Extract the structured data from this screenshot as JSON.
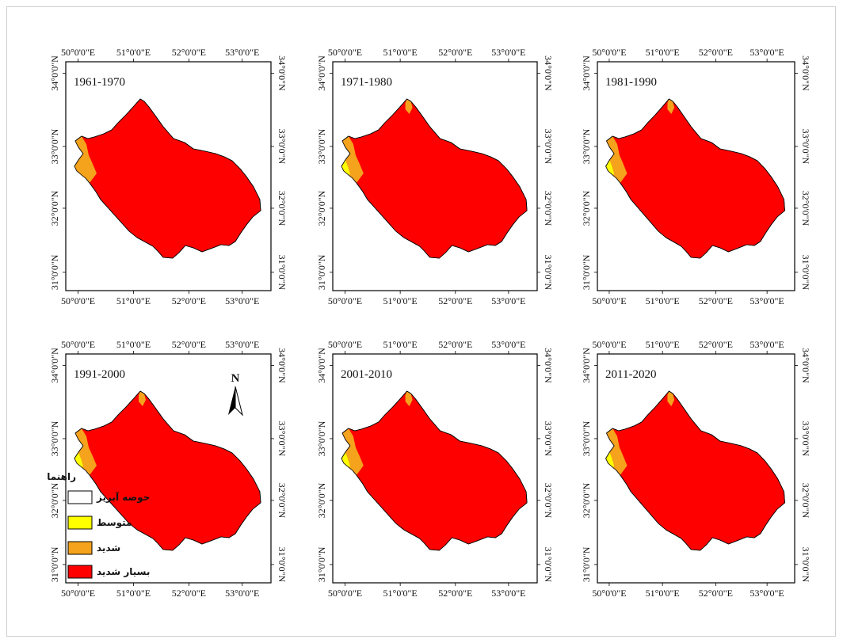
{
  "figure": {
    "lon_labels": [
      "50°0'0\"E",
      "51°0'0\"E",
      "52°0'0\"E",
      "53°0'0\"E"
    ],
    "lat_labels": [
      "34°0'0\"N",
      "33°0'0\"N",
      "32°0'0\"N",
      "31°0'0\"N"
    ],
    "panels": [
      {
        "period": "1961-1970",
        "moderate_area": false,
        "severe_north_patch": false
      },
      {
        "period": "1971-1980",
        "moderate_area": true,
        "severe_north_patch": true
      },
      {
        "period": "1981-1990",
        "moderate_area": true,
        "severe_north_patch": true
      },
      {
        "period": "1991-2000",
        "moderate_area": true,
        "severe_north_patch": true
      },
      {
        "period": "2001-2010",
        "moderate_area": true,
        "severe_north_patch": true
      },
      {
        "period": "2011-2020",
        "moderate_area": true,
        "severe_north_patch": true
      }
    ],
    "north_arrow": "N",
    "legend": {
      "title": "راهنما",
      "items": [
        {
          "label": "حوضه آبریز",
          "color": "#ffffff"
        },
        {
          "label": "متوسط",
          "color": "#ffff00"
        },
        {
          "label": "شدید",
          "color": "#f5a21c"
        },
        {
          "label": "بسیار شدید",
          "color": "#ff0000"
        }
      ]
    },
    "colors": {
      "very_severe": "#ff0000",
      "severe": "#f5a21c",
      "moderate": "#ffff00",
      "boundary": "#000000"
    }
  }
}
